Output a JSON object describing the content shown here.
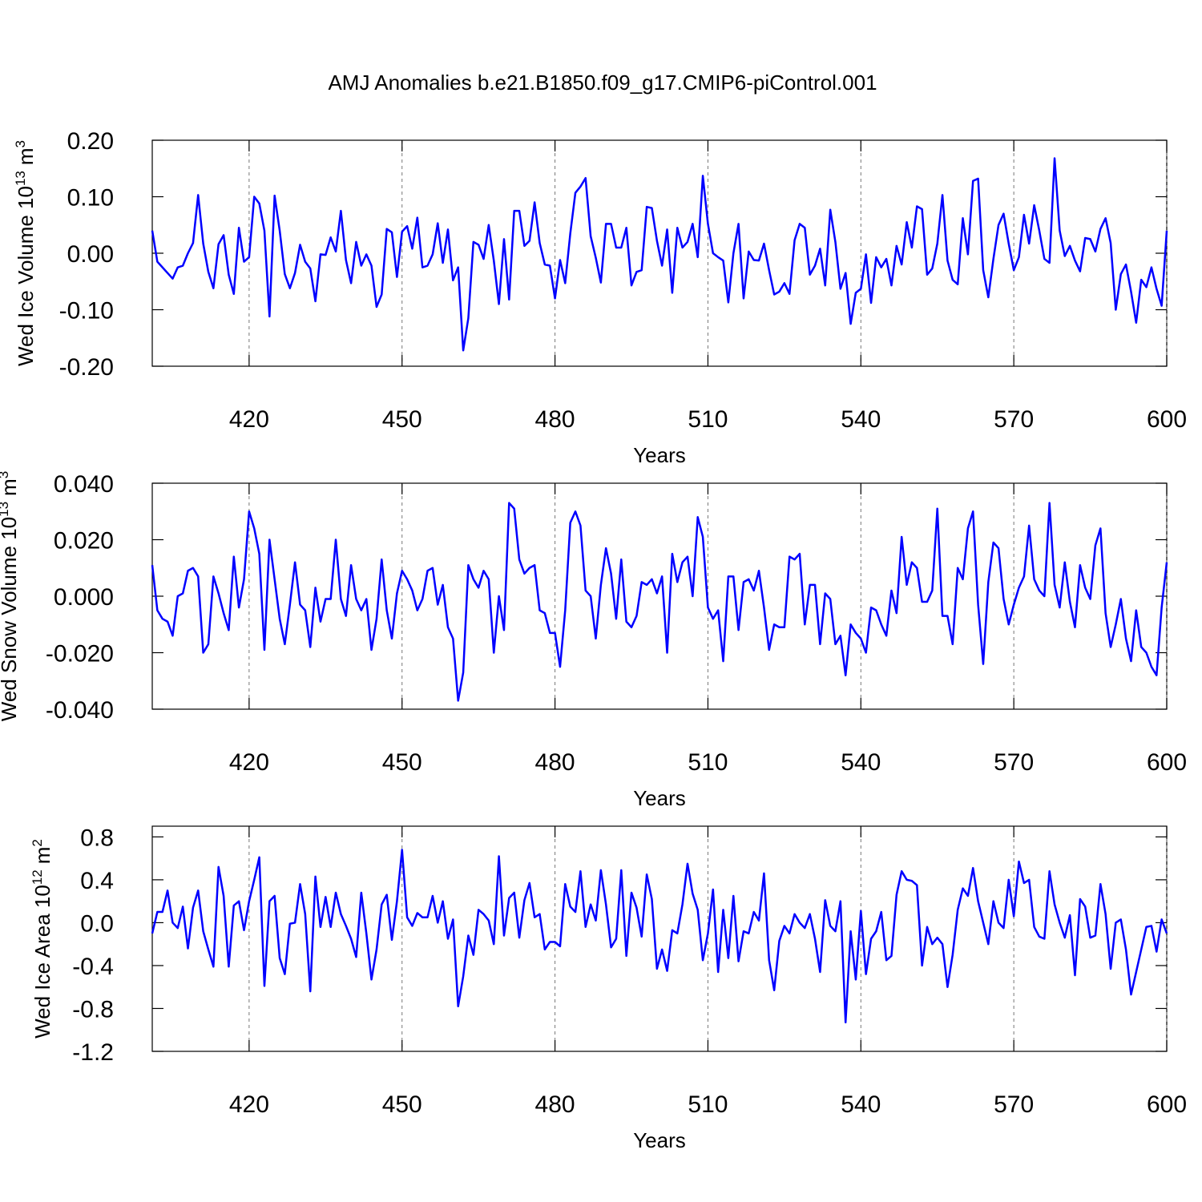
{
  "title": "AMJ Anomalies b.e21.B1850.f09_g17.CMIP6-piControl.001",
  "chart_data": [
    {
      "type": "line",
      "xlabel": "Years",
      "ylabel": {
        "text": "Wed Ice Volume 10",
        "exp": "13",
        "unit": "m",
        "unit_exp": "3"
      },
      "color": "#0000ff",
      "grid": true,
      "xlim": [
        401,
        600
      ],
      "xticks": [
        420,
        450,
        480,
        510,
        540,
        570,
        600
      ],
      "ylim": [
        -0.2,
        0.2
      ],
      "yticks": [
        {
          "value": -0.2,
          "label": "-0.20"
        },
        {
          "value": -0.1,
          "label": "-0.10"
        },
        {
          "value": 0,
          "label": "0.00"
        },
        {
          "value": 0.1,
          "label": "0.10"
        },
        {
          "value": 0.2,
          "label": "0.20"
        }
      ],
      "x": [
        401,
        402,
        403,
        404,
        405,
        406,
        407,
        408,
        409,
        410,
        411,
        412,
        413,
        414,
        415,
        416,
        417,
        418,
        419,
        420,
        421,
        422,
        423,
        424,
        425,
        426,
        427,
        428,
        429,
        430,
        431,
        432,
        433,
        434,
        435,
        436,
        437,
        438,
        439,
        440,
        441,
        442,
        443,
        444,
        445,
        446,
        447,
        448,
        449,
        450,
        451,
        452,
        453,
        454,
        455,
        456,
        457,
        458,
        459,
        460,
        461,
        462,
        463,
        464,
        465,
        466,
        467,
        468,
        469,
        470,
        471,
        472,
        473,
        474,
        475,
        476,
        477,
        478,
        479,
        480,
        481,
        482,
        483,
        484,
        485,
        486,
        487,
        488,
        489,
        490,
        491,
        492,
        493,
        494,
        495,
        496,
        497,
        498,
        499,
        500,
        501,
        502,
        503,
        504,
        505,
        506,
        507,
        508,
        509,
        510,
        511,
        512,
        513,
        514,
        515,
        516,
        517,
        518,
        519,
        520,
        521,
        522,
        523,
        524,
        525,
        526,
        527,
        528,
        529,
        530,
        531,
        532,
        533,
        534,
        535,
        536,
        537,
        538,
        539,
        540,
        541,
        542,
        543,
        544,
        545,
        546,
        547,
        548,
        549,
        550,
        551,
        552,
        553,
        554,
        555,
        556,
        557,
        558,
        559,
        560,
        561,
        562,
        563,
        564,
        565,
        566,
        567,
        568,
        569,
        570,
        571,
        572,
        573,
        574,
        575,
        576,
        577,
        578,
        579,
        580,
        581,
        582,
        583,
        584,
        585,
        586,
        587,
        588,
        589,
        590,
        591,
        592,
        593,
        594,
        595,
        596,
        597,
        598,
        599,
        600
      ],
      "values": [
        0.04,
        -0.015,
        -0.025,
        -0.035,
        -0.045,
        -0.025,
        -0.022,
        0.0,
        0.018,
        0.103,
        0.017,
        -0.033,
        -0.062,
        0.016,
        0.032,
        -0.038,
        -0.072,
        0.045,
        -0.015,
        -0.007,
        0.1,
        0.088,
        0.04,
        -0.112,
        0.102,
        0.04,
        -0.037,
        -0.062,
        -0.035,
        0.015,
        -0.015,
        -0.027,
        -0.085,
        -0.002,
        -0.003,
        0.028,
        0.003,
        0.075,
        -0.012,
        -0.053,
        0.02,
        -0.022,
        -0.002,
        -0.022,
        -0.095,
        -0.073,
        0.043,
        0.037,
        -0.042,
        0.038,
        0.048,
        0.008,
        0.063,
        -0.025,
        -0.022,
        -0.002,
        0.053,
        -0.017,
        0.042,
        -0.048,
        -0.025,
        -0.172,
        -0.115,
        0.02,
        0.015,
        -0.01,
        0.05,
        -0.013,
        -0.09,
        0.025,
        -0.082,
        0.075,
        0.075,
        0.013,
        0.022,
        0.09,
        0.018,
        -0.02,
        -0.022,
        -0.08,
        -0.012,
        -0.053,
        0.035,
        0.107,
        0.118,
        0.133,
        0.03,
        -0.008,
        -0.052,
        0.052,
        0.052,
        0.01,
        0.01,
        0.045,
        -0.057,
        -0.033,
        -0.03,
        0.082,
        0.08,
        0.022,
        -0.022,
        0.042,
        -0.07,
        0.045,
        0.01,
        0.02,
        0.052,
        -0.007,
        0.137,
        0.052,
        0.0,
        -0.007,
        -0.013,
        -0.087,
        0.0,
        0.052,
        -0.08,
        0.003,
        -0.012,
        -0.013,
        0.017,
        -0.03,
        -0.073,
        -0.068,
        -0.053,
        -0.072,
        0.023,
        0.052,
        0.045,
        -0.038,
        -0.022,
        0.008,
        -0.057,
        0.077,
        0.02,
        -0.063,
        -0.035,
        -0.125,
        -0.07,
        -0.063,
        -0.002,
        -0.088,
        -0.007,
        -0.025,
        -0.01,
        -0.057,
        0.013,
        -0.02,
        0.055,
        0.01,
        0.083,
        0.078,
        -0.038,
        -0.027,
        0.017,
        0.103,
        -0.013,
        -0.047,
        -0.055,
        0.062,
        -0.002,
        0.128,
        0.132,
        -0.03,
        -0.078,
        -0.01,
        0.05,
        0.07,
        0.017,
        -0.03,
        -0.007,
        0.068,
        0.017,
        0.085,
        0.04,
        -0.01,
        -0.017,
        0.168,
        0.04,
        -0.005,
        0.013,
        -0.013,
        -0.032,
        0.027,
        0.025,
        0.003,
        0.043,
        0.062,
        0.018,
        -0.1,
        -0.037,
        -0.02,
        -0.068,
        -0.123,
        -0.047,
        -0.06,
        -0.025,
        -0.063,
        -0.093,
        0.04
      ]
    },
    {
      "type": "line",
      "xlabel": "Years",
      "ylabel": {
        "text": "Wed Snow Volume 10",
        "exp": "13",
        "unit": "m",
        "unit_exp": "3"
      },
      "color": "#0000ff",
      "grid": true,
      "xlim": [
        401,
        600
      ],
      "xticks": [
        420,
        450,
        480,
        510,
        540,
        570,
        600
      ],
      "ylim": [
        -0.04,
        0.04
      ],
      "yticks": [
        {
          "value": -0.04,
          "label": "-0.040"
        },
        {
          "value": -0.02,
          "label": "-0.020"
        },
        {
          "value": 0,
          "label": "0.000"
        },
        {
          "value": 0.02,
          "label": "0.020"
        },
        {
          "value": 0.04,
          "label": "0.040"
        }
      ],
      "x": [
        401,
        402,
        403,
        404,
        405,
        406,
        407,
        408,
        409,
        410,
        411,
        412,
        413,
        414,
        415,
        416,
        417,
        418,
        419,
        420,
        421,
        422,
        423,
        424,
        425,
        426,
        427,
        428,
        429,
        430,
        431,
        432,
        433,
        434,
        435,
        436,
        437,
        438,
        439,
        440,
        441,
        442,
        443,
        444,
        445,
        446,
        447,
        448,
        449,
        450,
        451,
        452,
        453,
        454,
        455,
        456,
        457,
        458,
        459,
        460,
        461,
        462,
        463,
        464,
        465,
        466,
        467,
        468,
        469,
        470,
        471,
        472,
        473,
        474,
        475,
        476,
        477,
        478,
        479,
        480,
        481,
        482,
        483,
        484,
        485,
        486,
        487,
        488,
        489,
        490,
        491,
        492,
        493,
        494,
        495,
        496,
        497,
        498,
        499,
        500,
        501,
        502,
        503,
        504,
        505,
        506,
        507,
        508,
        509,
        510,
        511,
        512,
        513,
        514,
        515,
        516,
        517,
        518,
        519,
        520,
        521,
        522,
        523,
        524,
        525,
        526,
        527,
        528,
        529,
        530,
        531,
        532,
        533,
        534,
        535,
        536,
        537,
        538,
        539,
        540,
        541,
        542,
        543,
        544,
        545,
        546,
        547,
        548,
        549,
        550,
        551,
        552,
        553,
        554,
        555,
        556,
        557,
        558,
        559,
        560,
        561,
        562,
        563,
        564,
        565,
        566,
        567,
        568,
        569,
        570,
        571,
        572,
        573,
        574,
        575,
        576,
        577,
        578,
        579,
        580,
        581,
        582,
        583,
        584,
        585,
        586,
        587,
        588,
        589,
        590,
        591,
        592,
        593,
        594,
        595,
        596,
        597,
        598,
        599,
        600
      ],
      "values": [
        0.011,
        -0.005,
        -0.008,
        -0.009,
        -0.014,
        0.0,
        0.001,
        0.009,
        0.01,
        0.007,
        -0.02,
        -0.017,
        0.007,
        0.001,
        -0.006,
        -0.012,
        0.014,
        -0.004,
        0.006,
        0.03,
        0.024,
        0.015,
        -0.019,
        0.02,
        0.006,
        -0.008,
        -0.017,
        -0.003,
        0.012,
        -0.003,
        -0.005,
        -0.018,
        0.003,
        -0.009,
        -0.001,
        -0.001,
        0.02,
        -0.001,
        -0.007,
        0.011,
        -0.001,
        -0.005,
        -0.001,
        -0.019,
        -0.008,
        0.013,
        -0.005,
        -0.015,
        0.001,
        0.009,
        0.006,
        0.002,
        -0.005,
        -0.001,
        0.009,
        0.01,
        -0.003,
        0.004,
        -0.011,
        -0.015,
        -0.037,
        -0.027,
        0.011,
        0.006,
        0.003,
        0.009,
        0.006,
        -0.02,
        0.0,
        -0.012,
        0.033,
        0.031,
        0.013,
        0.008,
        0.01,
        0.011,
        -0.005,
        -0.006,
        -0.013,
        -0.013,
        -0.025,
        -0.005,
        0.026,
        0.03,
        0.025,
        0.002,
        0.0,
        -0.015,
        0.004,
        0.017,
        0.008,
        -0.008,
        0.013,
        -0.009,
        -0.011,
        -0.007,
        0.005,
        0.004,
        0.006,
        0.001,
        0.007,
        -0.02,
        0.015,
        0.005,
        0.012,
        0.014,
        0.0,
        0.028,
        0.021,
        -0.004,
        -0.008,
        -0.005,
        -0.023,
        0.007,
        0.007,
        -0.012,
        0.005,
        0.006,
        0.002,
        0.009,
        -0.004,
        -0.019,
        -0.01,
        -0.011,
        -0.011,
        0.014,
        0.013,
        0.015,
        -0.01,
        0.004,
        0.004,
        -0.017,
        0.001,
        -0.001,
        -0.017,
        -0.014,
        -0.028,
        -0.01,
        -0.013,
        -0.015,
        -0.02,
        -0.004,
        -0.005,
        -0.01,
        -0.014,
        0.002,
        -0.006,
        0.021,
        0.004,
        0.012,
        0.01,
        -0.002,
        -0.002,
        0.002,
        0.031,
        -0.007,
        -0.007,
        -0.017,
        0.01,
        0.006,
        0.024,
        0.03,
        -0.003,
        -0.024,
        0.005,
        0.019,
        0.017,
        -0.001,
        -0.01,
        -0.003,
        0.003,
        0.007,
        0.025,
        0.006,
        0.002,
        0.0,
        0.033,
        0.004,
        -0.004,
        0.012,
        -0.002,
        -0.011,
        0.011,
        0.003,
        -0.001,
        0.018,
        0.024,
        -0.006,
        -0.018,
        -0.01,
        -0.001,
        -0.015,
        -0.023,
        -0.005,
        -0.018,
        -0.02,
        -0.025,
        -0.028,
        -0.004,
        0.012
      ]
    },
    {
      "type": "line",
      "xlabel": "Years",
      "ylabel": {
        "text": "Wed Ice Area 10",
        "exp": "12",
        "unit": "m",
        "unit_exp": "2"
      },
      "color": "#0000ff",
      "grid": true,
      "xlim": [
        401,
        600
      ],
      "xticks": [
        420,
        450,
        480,
        510,
        540,
        570,
        600
      ],
      "ylim": [
        -1.2,
        0.9
      ],
      "yticks": [
        {
          "value": -1.2,
          "label": "-1.2"
        },
        {
          "value": -0.8,
          "label": "-0.8"
        },
        {
          "value": -0.4,
          "label": "-0.4"
        },
        {
          "value": 0,
          "label": "0.0"
        },
        {
          "value": 0.4,
          "label": "0.4"
        },
        {
          "value": 0.8,
          "label": "0.8"
        }
      ],
      "x": [
        401,
        402,
        403,
        404,
        405,
        406,
        407,
        408,
        409,
        410,
        411,
        412,
        413,
        414,
        415,
        416,
        417,
        418,
        419,
        420,
        421,
        422,
        423,
        424,
        425,
        426,
        427,
        428,
        429,
        430,
        431,
        432,
        433,
        434,
        435,
        436,
        437,
        438,
        439,
        440,
        441,
        442,
        443,
        444,
        445,
        446,
        447,
        448,
        449,
        450,
        451,
        452,
        453,
        454,
        455,
        456,
        457,
        458,
        459,
        460,
        461,
        462,
        463,
        464,
        465,
        466,
        467,
        468,
        469,
        470,
        471,
        472,
        473,
        474,
        475,
        476,
        477,
        478,
        479,
        480,
        481,
        482,
        483,
        484,
        485,
        486,
        487,
        488,
        489,
        490,
        491,
        492,
        493,
        494,
        495,
        496,
        497,
        498,
        499,
        500,
        501,
        502,
        503,
        504,
        505,
        506,
        507,
        508,
        509,
        510,
        511,
        512,
        513,
        514,
        515,
        516,
        517,
        518,
        519,
        520,
        521,
        522,
        523,
        524,
        525,
        526,
        527,
        528,
        529,
        530,
        531,
        532,
        533,
        534,
        535,
        536,
        537,
        538,
        539,
        540,
        541,
        542,
        543,
        544,
        545,
        546,
        547,
        548,
        549,
        550,
        551,
        552,
        553,
        554,
        555,
        556,
        557,
        558,
        559,
        560,
        561,
        562,
        563,
        564,
        565,
        566,
        567,
        568,
        569,
        570,
        571,
        572,
        573,
        574,
        575,
        576,
        577,
        578,
        579,
        580,
        581,
        582,
        583,
        584,
        585,
        586,
        587,
        588,
        589,
        590,
        591,
        592,
        593,
        594,
        595,
        596,
        597,
        598,
        599,
        600
      ],
      "values": [
        -0.1,
        0.1,
        0.1,
        0.3,
        0.0,
        -0.05,
        0.15,
        -0.24,
        0.14,
        0.3,
        -0.08,
        -0.25,
        -0.41,
        0.52,
        0.25,
        -0.41,
        0.16,
        0.2,
        -0.07,
        0.2,
        0.4,
        0.61,
        -0.59,
        0.2,
        0.25,
        -0.33,
        -0.48,
        -0.01,
        0.0,
        0.36,
        0.08,
        -0.64,
        0.43,
        -0.04,
        0.24,
        -0.04,
        0.28,
        0.08,
        -0.03,
        -0.15,
        -0.32,
        0.28,
        -0.1,
        -0.53,
        -0.25,
        0.17,
        0.26,
        -0.16,
        0.2,
        0.68,
        0.05,
        -0.03,
        0.09,
        0.05,
        0.05,
        0.25,
        0.0,
        0.2,
        -0.15,
        0.03,
        -0.78,
        -0.5,
        -0.12,
        -0.3,
        0.12,
        0.08,
        0.02,
        -0.2,
        0.62,
        -0.12,
        0.23,
        0.28,
        -0.14,
        0.21,
        0.37,
        0.05,
        0.08,
        -0.25,
        -0.18,
        -0.18,
        -0.22,
        0.36,
        0.15,
        0.1,
        0.48,
        -0.04,
        0.17,
        0.02,
        0.49,
        0.17,
        -0.23,
        -0.15,
        0.49,
        -0.31,
        0.28,
        0.14,
        -0.13,
        0.45,
        0.22,
        -0.43,
        -0.25,
        -0.45,
        -0.07,
        -0.1,
        0.17,
        0.55,
        0.27,
        0.12,
        -0.35,
        -0.1,
        0.31,
        -0.46,
        0.12,
        -0.33,
        0.25,
        -0.36,
        -0.08,
        -0.1,
        0.1,
        0.02,
        0.46,
        -0.35,
        -0.63,
        -0.17,
        -0.03,
        -0.1,
        0.08,
        0.0,
        -0.05,
        0.08,
        -0.15,
        -0.46,
        0.21,
        -0.03,
        -0.08,
        0.2,
        -0.93,
        -0.08,
        -0.53,
        0.11,
        -0.48,
        -0.15,
        -0.08,
        0.1,
        -0.35,
        -0.31,
        0.26,
        0.48,
        0.4,
        0.39,
        0.35,
        -0.4,
        -0.04,
        -0.2,
        -0.14,
        -0.2,
        -0.6,
        -0.3,
        0.12,
        0.32,
        0.25,
        0.51,
        0.2,
        0.0,
        -0.2,
        0.2,
        0.0,
        -0.05,
        0.4,
        0.06,
        0.57,
        0.37,
        0.4,
        -0.04,
        -0.13,
        -0.15,
        0.48,
        0.17,
        0.0,
        -0.14,
        0.07,
        -0.49,
        0.22,
        0.15,
        -0.14,
        -0.12,
        0.36,
        0.08,
        -0.43,
        0.0,
        0.03,
        -0.25,
        -0.67,
        -0.46,
        -0.25,
        -0.04,
        -0.03,
        -0.27,
        0.03,
        -0.1
      ]
    }
  ]
}
